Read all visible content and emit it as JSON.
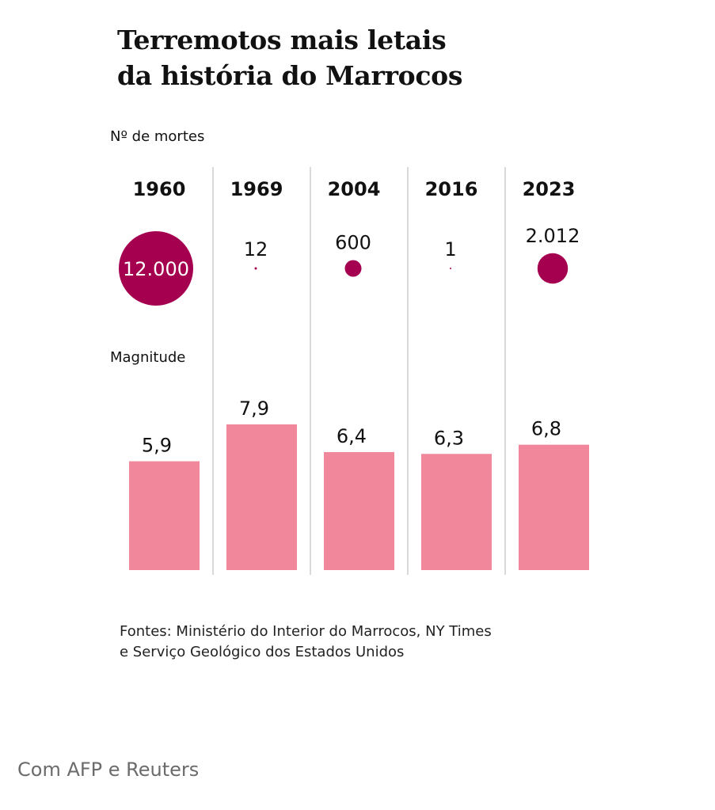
{
  "title_line1": "Terremotos mais letais",
  "title_line2": "da história do Marrocos",
  "deaths_label": "Nº de mortes",
  "magnitude_label": "Magnitude",
  "source_line1": "Fontes: Ministério do Interior do Marrocos, NY Times",
  "source_line2": "e Serviço Geológico dos Estados Unidos",
  "credit": "Com AFP e Reuters",
  "colors": {
    "circle": "#a50050",
    "bar": "#f0879a",
    "divider": "#d9d9d9",
    "circle_label_inside": "#ffffff"
  },
  "chart_data": {
    "type": "bar",
    "title": "Terremotos mais letais da história do Marrocos",
    "categories": [
      "1960",
      "1969",
      "2004",
      "2016",
      "2023"
    ],
    "series": [
      {
        "name": "Nº de mortes",
        "values": [
          12000,
          12,
          600,
          1,
          2012
        ],
        "labels": [
          "12.000",
          "12",
          "600",
          "1",
          "2.012"
        ],
        "encoding": "circle-area"
      },
      {
        "name": "Magnitude",
        "values": [
          5.9,
          7.9,
          6.4,
          6.3,
          6.8
        ],
        "labels": [
          "5,9",
          "7,9",
          "6,4",
          "6,3",
          "6,8"
        ],
        "encoding": "bar-height"
      }
    ],
    "xlabel": "",
    "ylabel": "",
    "magnitude_ylim": [
      0,
      7.9
    ],
    "grid": false,
    "legend": "none"
  }
}
